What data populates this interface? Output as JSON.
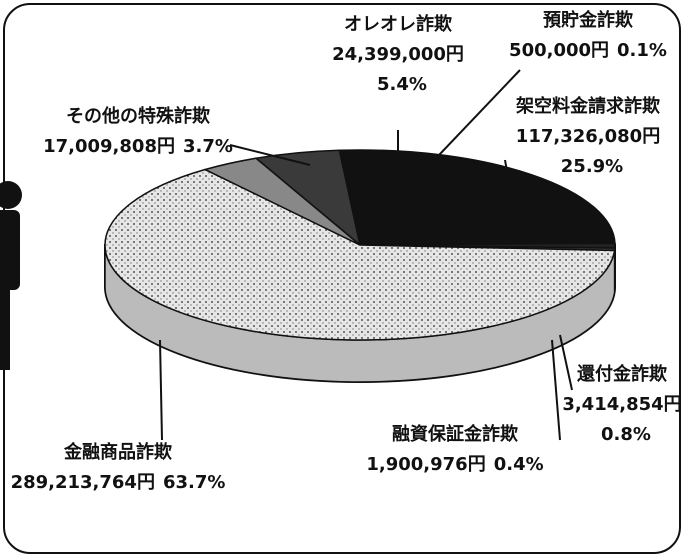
{
  "chart_data": {
    "type": "pie",
    "categories": [
      "オレオレ詐欺",
      "預貯金詐欺",
      "架空料金請求詐欺",
      "還付金詐欺",
      "融資保証金詐欺",
      "金融商品詐欺",
      "その他の特殊詐欺"
    ],
    "values": [
      5.4,
      0.1,
      25.9,
      0.8,
      0.4,
      63.7,
      3.7
    ],
    "value_labels": [
      "5.4%",
      "0.1%",
      "25.9%",
      "0.8%",
      "0.4%",
      "63.7%",
      "3.7%"
    ],
    "amounts": [
      24399000,
      500000,
      117326080,
      3414854,
      1900976,
      289213764,
      17009808
    ],
    "amount_labels": [
      "24,399,000円",
      "500,000円",
      "117,326,080円",
      "3,414,854円",
      "1,900,976円",
      "289,213,764円",
      "17,009,808円"
    ],
    "colors": [
      "#3a3a3a",
      "#555555",
      "#111111",
      "#222222",
      "#444444",
      "#d4d4d4",
      "#888888"
    ]
  }
}
